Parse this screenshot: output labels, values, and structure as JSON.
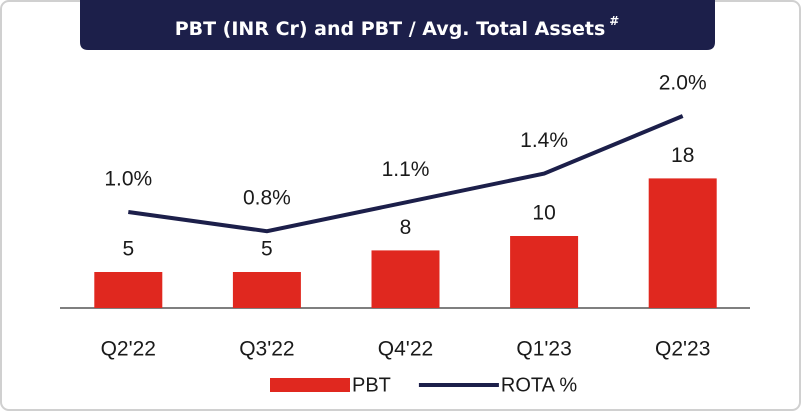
{
  "chart_data": {
    "type": "bar_line",
    "title": "PBT (INR Cr) and PBT / Avg. Total Assets",
    "title_note": "#",
    "categories": [
      "Q2'22",
      "Q3'22",
      "Q4'22",
      "Q1'23",
      "Q2'23"
    ],
    "series": [
      {
        "name": "PBT",
        "type": "bar",
        "color": "#e0281f",
        "axis": "y",
        "values": [
          5,
          5,
          8,
          10,
          18
        ]
      },
      {
        "name": "ROTA %",
        "type": "line",
        "color": "#1c1f4a",
        "axis": "y2",
        "values": [
          1.0,
          0.8,
          1.1,
          1.4,
          2.0
        ],
        "value_labels": [
          "1.0%",
          "0.8%",
          "1.1%",
          "1.4%",
          "2.0%"
        ]
      }
    ],
    "ylim": [
      0,
      30
    ],
    "y2lim": [
      0,
      2.25
    ],
    "legend": "bottom"
  }
}
